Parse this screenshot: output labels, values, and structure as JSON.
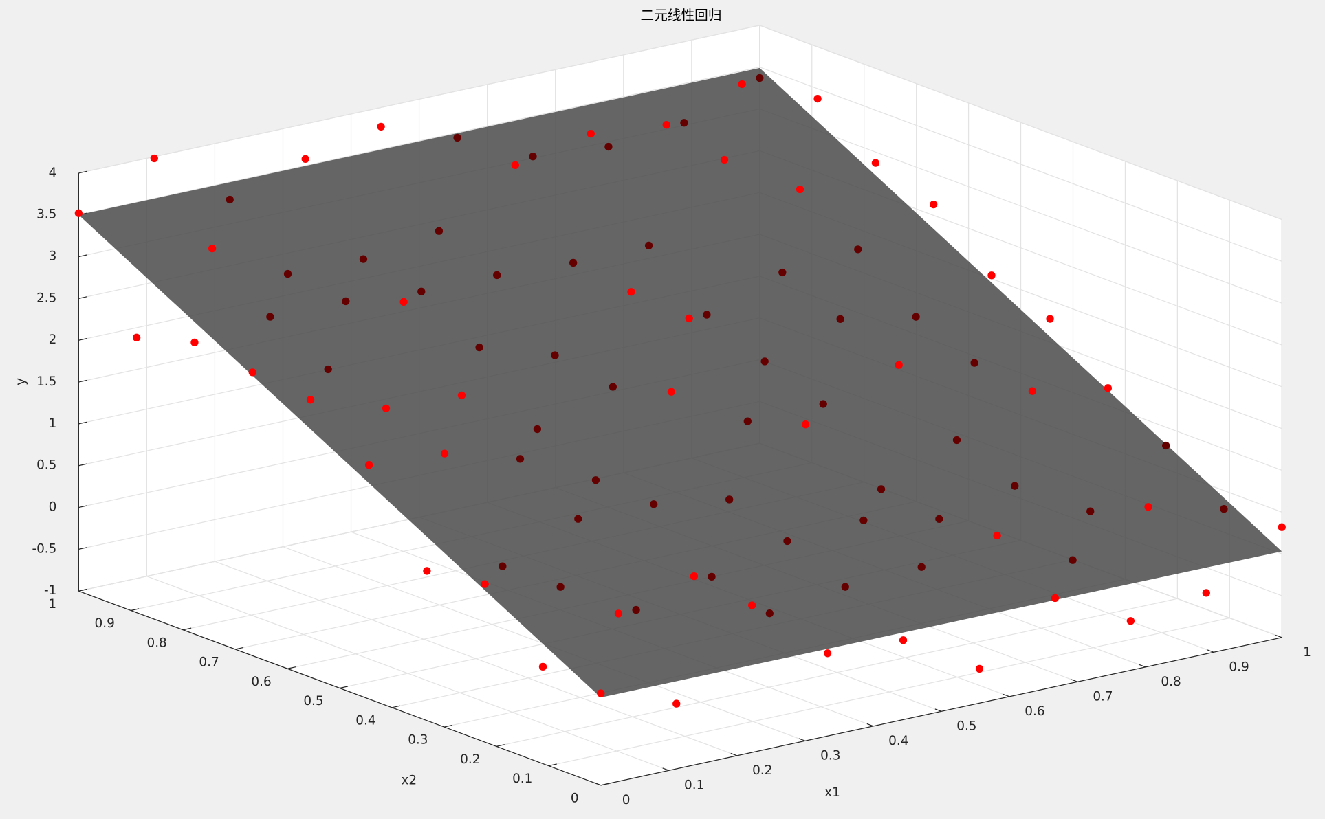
{
  "chart_data": {
    "type": "scatter3d",
    "title": "二元线性回归",
    "x1label": "x1",
    "x2label": "x2",
    "ylabel": "y",
    "x1lim": [
      0,
      1
    ],
    "x2lim": [
      0,
      1
    ],
    "ylim": [
      -1,
      4
    ],
    "x1ticks": [
      0,
      0.1,
      0.2,
      0.3,
      0.4,
      0.5,
      0.6,
      0.7,
      0.8,
      0.9,
      1
    ],
    "x2ticks": [
      0,
      0.1,
      0.2,
      0.3,
      0.4,
      0.5,
      0.6,
      0.7,
      0.8,
      0.9,
      1
    ],
    "yticks": [
      -1,
      -0.5,
      0,
      0.5,
      1,
      1.5,
      2,
      2.5,
      3,
      3.5,
      4
    ],
    "grid": true,
    "color": "#ff0000",
    "occluded_color": "#650000",
    "plane_color": "#4a4a4a",
    "plane_alpha": 0.85,
    "plane": {
      "x1": [
        0,
        1
      ],
      "x2": [
        0,
        1
      ],
      "y": [
        [
          0.05,
          3.5
        ],
        [
          0.03,
          3.49
        ]
      ]
    },
    "points": {
      "x1": [
        0,
        0,
        0,
        0,
        0,
        0,
        0,
        0,
        0,
        0,
        0.111,
        0.111,
        0.111,
        0.111,
        0.111,
        0.111,
        0.111,
        0.111,
        0.111,
        0.111,
        0.222,
        0.222,
        0.222,
        0.222,
        0.222,
        0.222,
        0.222,
        0.222,
        0.222,
        0.222,
        0.333,
        0.333,
        0.333,
        0.333,
        0.333,
        0.333,
        0.333,
        0.333,
        0.333,
        0.333,
        0.444,
        0.444,
        0.444,
        0.444,
        0.444,
        0.444,
        0.444,
        0.444,
        0.444,
        0.444,
        0.556,
        0.556,
        0.556,
        0.556,
        0.556,
        0.556,
        0.556,
        0.556,
        0.556,
        0.556,
        0.667,
        0.667,
        0.667,
        0.667,
        0.667,
        0.667,
        0.667,
        0.667,
        0.667,
        0.667,
        0.778,
        0.778,
        0.778,
        0.778,
        0.778,
        0.778,
        0.778,
        0.778,
        0.778,
        0.778,
        0.889,
        0.889,
        0.889,
        0.889,
        0.889,
        0.889,
        0.889,
        0.889,
        0.889,
        0.889,
        1,
        1,
        1,
        1,
        1,
        1,
        1,
        1,
        1,
        1
      ],
      "x2": [
        0,
        0.111,
        0.222,
        0.333,
        0.444,
        0.556,
        0.667,
        0.778,
        0.889,
        1,
        0,
        0.111,
        0.222,
        0.333,
        0.444,
        0.556,
        0.667,
        0.778,
        0.889,
        1,
        0,
        0.111,
        0.222,
        0.333,
        0.444,
        0.556,
        0.667,
        0.778,
        0.889,
        1,
        0,
        0.111,
        0.222,
        0.333,
        0.444,
        0.556,
        0.667,
        0.778,
        0.889,
        1,
        0,
        0.111,
        0.222,
        0.333,
        0.444,
        0.556,
        0.667,
        0.778,
        0.889,
        1,
        0,
        0.111,
        0.222,
        0.333,
        0.444,
        0.556,
        0.667,
        0.778,
        0.889,
        1,
        0,
        0.111,
        0.222,
        0.333,
        0.444,
        0.556,
        0.667,
        0.778,
        0.889,
        1,
        0,
        0.111,
        0.222,
        0.333,
        0.444,
        0.556,
        0.667,
        0.778,
        0.889,
        1,
        0,
        0.111,
        0.222,
        0.333,
        0.444,
        0.556,
        0.667,
        0.778,
        0.889,
        1,
        0,
        0.111,
        0.222,
        0.333,
        0.444,
        0.556,
        0.667,
        0.778,
        0.889,
        1
      ],
      "y": [
        0.1,
        0.16,
        0.89,
        0.79,
        1.8,
        2.32,
        2.39,
        2.49,
        2.29,
        3.52,
        -0.22,
        0.6,
        0.66,
        0.65,
        1.74,
        2.02,
        2.23,
        2.6,
        3.16,
        3.98,
        0.76,
        0.85,
        0.19,
        1.02,
        1.48,
        1.98,
        2.84,
        2.59,
        2.66,
        3.29,
        -0.01,
        0.21,
        0.39,
        1.0,
        1.03,
        1.38,
        2.1,
        2.51,
        2.64,
        3.58,
        -0.05,
        0.33,
        0.62,
        0.86,
        1.89,
        1.69,
        1.81,
        2.51,
        2.78,
        3.77,
        -0.59,
        0.37,
        0.67,
        1.56,
        1.34,
        2.31,
        2.37,
        2.46,
        3.37,
        3.44,
        0.06,
        0.55,
        0.49,
        0.59,
        1.35,
        1.6,
        1.9,
        2.47,
        3.55,
        3.02,
        -0.41,
        0.06,
        0.69,
        0.98,
        1.62,
        1.91,
        2.21,
        3.3,
        3.46,
        2.94,
        -0.27,
        0.5,
        0.19,
        1.37,
        1.45,
        1.74,
        2.29,
        2.75,
        3.75,
        3.03,
        0.32,
        0.28,
        0.78,
        1.21,
        1.78,
        2.04,
        2.63,
        2.87,
        3.38,
        3.37
      ]
    }
  }
}
